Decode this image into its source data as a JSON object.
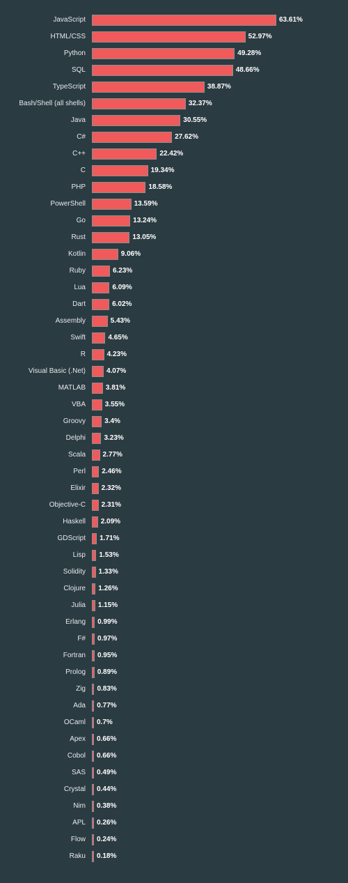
{
  "chart_data": {
    "type": "bar",
    "orientation": "horizontal",
    "bar_color": "#f05a5a",
    "background_color": "#2b3b42",
    "value_suffix": "%",
    "categories": [
      "JavaScript",
      "HTML/CSS",
      "Python",
      "SQL",
      "TypeScript",
      "Bash/Shell (all shells)",
      "Java",
      "C#",
      "C++",
      "C",
      "PHP",
      "PowerShell",
      "Go",
      "Rust",
      "Kotlin",
      "Ruby",
      "Lua",
      "Dart",
      "Assembly",
      "Swift",
      "R",
      "Visual Basic (.Net)",
      "MATLAB",
      "VBA",
      "Groovy",
      "Delphi",
      "Scala",
      "Perl",
      "Elixir",
      "Objective-C",
      "Haskell",
      "GDScript",
      "Lisp",
      "Solidity",
      "Clojure",
      "Julia",
      "Erlang",
      "F#",
      "Fortran",
      "Prolog",
      "Zig",
      "Ada",
      "OCaml",
      "Apex",
      "Cobol",
      "SAS",
      "Crystal",
      "Nim",
      "APL",
      "Flow",
      "Raku"
    ],
    "values": [
      63.61,
      52.97,
      49.28,
      48.66,
      38.87,
      32.37,
      30.55,
      27.62,
      22.42,
      19.34,
      18.58,
      13.59,
      13.24,
      13.05,
      9.06,
      6.23,
      6.09,
      6.02,
      5.43,
      4.65,
      4.23,
      4.07,
      3.81,
      3.55,
      3.4,
      3.23,
      2.77,
      2.46,
      2.32,
      2.31,
      2.09,
      1.71,
      1.53,
      1.33,
      1.26,
      1.15,
      0.99,
      0.97,
      0.95,
      0.89,
      0.83,
      0.77,
      0.7,
      0.66,
      0.66,
      0.49,
      0.44,
      0.38,
      0.26,
      0.24,
      0.18
    ],
    "value_labels": [
      "63.61%",
      "52.97%",
      "49.28%",
      "48.66%",
      "38.87%",
      "32.37%",
      "30.55%",
      "27.62%",
      "22.42%",
      "19.34%",
      "18.58%",
      "13.59%",
      "13.24%",
      "13.05%",
      "9.06%",
      "6.23%",
      "6.09%",
      "6.02%",
      "5.43%",
      "4.65%",
      "4.23%",
      "4.07%",
      "3.81%",
      "3.55%",
      "3.4%",
      "3.23%",
      "2.77%",
      "2.46%",
      "2.32%",
      "2.31%",
      "2.09%",
      "1.71%",
      "1.53%",
      "1.33%",
      "1.26%",
      "1.15%",
      "0.99%",
      "0.97%",
      "0.95%",
      "0.89%",
      "0.83%",
      "0.77%",
      "0.7%",
      "0.66%",
      "0.66%",
      "0.49%",
      "0.44%",
      "0.38%",
      "0.26%",
      "0.24%",
      "0.18%"
    ],
    "xlim": [
      0,
      63.61
    ],
    "grid": false,
    "legend": "none"
  }
}
